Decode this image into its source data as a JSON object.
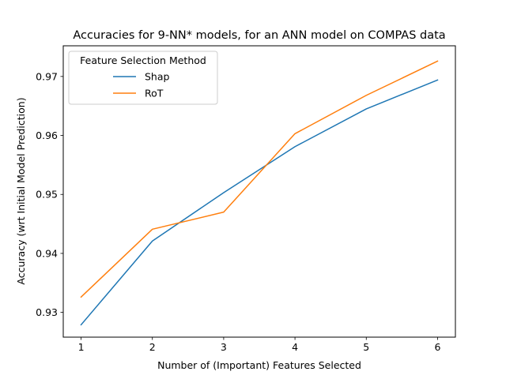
{
  "chart_data": {
    "type": "line",
    "title": "Accuracies for 9-NN* models, for an ANN model on COMPAS data",
    "xlabel": "Number of (Important) Features Selected",
    "ylabel": "Accuracy (wrt Initial Model Prediction)",
    "x": [
      1,
      2,
      3,
      4,
      5,
      6
    ],
    "xticks": [
      "1",
      "2",
      "3",
      "4",
      "5",
      "6"
    ],
    "yticks": [
      "0.93",
      "0.94",
      "0.95",
      "0.96",
      "0.97"
    ],
    "xlim": [
      0.75,
      6.25
    ],
    "ylim": [
      0.9258,
      0.9752
    ],
    "grid": false,
    "legend": {
      "title": "Feature Selection Method",
      "placement": "top-left"
    },
    "series": [
      {
        "name": "Shap",
        "color": "#1f77b4",
        "values": [
          0.9279,
          0.9421,
          0.9503,
          0.9581,
          0.9645,
          0.9694
        ]
      },
      {
        "name": "RoT",
        "color": "#ff7f0e",
        "values": [
          0.9326,
          0.9441,
          0.947,
          0.9603,
          0.9668,
          0.9726
        ]
      }
    ]
  }
}
